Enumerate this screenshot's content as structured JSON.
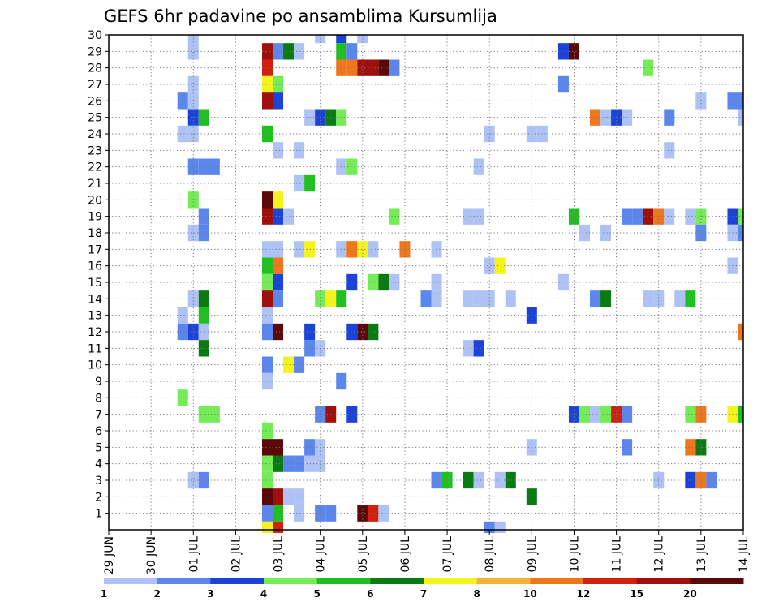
{
  "chart_data": {
    "type": "heatmap",
    "title": "GEFS 6hr padavine po ansamblima Kursumlija",
    "xlabel": "",
    "ylabel": "",
    "x_tick_labels": [
      "29 JUN",
      "30 JUN",
      "01 JUL",
      "02 JUL",
      "03 JUL",
      "04 JUL",
      "05 JUL",
      "06 JUL",
      "07 JUL",
      "08 JUL",
      "09 JUL",
      "10 JUL",
      "11 JUL",
      "12 JUL",
      "13 JUL",
      "14 JUL"
    ],
    "x_range_steps": [
      0,
      60
    ],
    "steps_per_day": 4,
    "y_range_members": [
      0,
      30
    ],
    "y_tick_labels": [
      "1",
      "2",
      "3",
      "4",
      "5",
      "6",
      "7",
      "8",
      "9",
      "10",
      "11",
      "12",
      "13",
      "14",
      "15",
      "16",
      "17",
      "18",
      "19",
      "20",
      "21",
      "22",
      "23",
      "24",
      "25",
      "26",
      "27",
      "28",
      "29",
      "30"
    ],
    "grid": true,
    "colorbar": {
      "labels": [
        "1",
        "2",
        "3",
        "4",
        "5",
        "6",
        "7",
        "8",
        "10",
        "12",
        "15",
        "20"
      ],
      "colors": [
        "#aec2f5",
        "#5b87ec",
        "#1c43d8",
        "#73ec58",
        "#20c020",
        "#0c7a12",
        "#f4f41c",
        "#f6b13b",
        "#f0761c",
        "#d0200e",
        "#a0100a",
        "#5c0808"
      ]
    },
    "cells": [
      [
        8,
        30,
        1
      ],
      [
        20,
        30,
        1
      ],
      [
        22,
        30,
        3
      ],
      [
        24,
        30,
        1
      ],
      [
        8,
        29,
        1
      ],
      [
        15,
        29,
        11
      ],
      [
        16,
        29,
        2
      ],
      [
        17,
        29,
        6
      ],
      [
        18,
        29,
        1
      ],
      [
        22,
        29,
        5
      ],
      [
        23,
        29,
        2
      ],
      [
        43,
        29,
        3
      ],
      [
        44,
        29,
        12
      ],
      [
        15,
        28,
        10
      ],
      [
        22,
        28,
        9
      ],
      [
        23,
        28,
        9
      ],
      [
        24,
        28,
        11
      ],
      [
        25,
        28,
        11
      ],
      [
        26,
        28,
        12
      ],
      [
        27,
        28,
        2
      ],
      [
        51,
        28,
        4
      ],
      [
        8,
        27,
        1
      ],
      [
        15,
        27,
        7
      ],
      [
        16,
        27,
        4
      ],
      [
        43,
        27,
        2
      ],
      [
        7,
        26,
        2
      ],
      [
        8,
        26,
        1
      ],
      [
        15,
        26,
        11
      ],
      [
        16,
        26,
        3
      ],
      [
        56,
        26,
        1
      ],
      [
        59,
        26,
        2
      ],
      [
        60,
        26,
        2
      ],
      [
        8,
        25,
        3
      ],
      [
        9,
        25,
        5
      ],
      [
        19,
        25,
        1
      ],
      [
        20,
        25,
        3
      ],
      [
        21,
        25,
        6
      ],
      [
        22,
        25,
        4
      ],
      [
        46,
        25,
        9
      ],
      [
        47,
        25,
        1
      ],
      [
        48,
        25,
        3
      ],
      [
        49,
        25,
        1
      ],
      [
        53,
        25,
        2
      ],
      [
        60,
        25,
        1
      ],
      [
        7,
        24,
        1
      ],
      [
        8,
        24,
        1
      ],
      [
        15,
        24,
        5
      ],
      [
        36,
        24,
        1
      ],
      [
        40,
        24,
        1
      ],
      [
        41,
        24,
        1
      ],
      [
        16,
        23,
        1
      ],
      [
        18,
        23,
        1
      ],
      [
        53,
        23,
        1
      ],
      [
        8,
        22,
        2
      ],
      [
        9,
        22,
        2
      ],
      [
        10,
        22,
        2
      ],
      [
        22,
        22,
        1
      ],
      [
        23,
        22,
        4
      ],
      [
        35,
        22,
        1
      ],
      [
        18,
        21,
        1
      ],
      [
        19,
        21,
        5
      ],
      [
        8,
        20,
        4
      ],
      [
        15,
        20,
        12
      ],
      [
        16,
        20,
        7
      ],
      [
        9,
        19,
        2
      ],
      [
        15,
        19,
        11
      ],
      [
        16,
        19,
        3
      ],
      [
        17,
        19,
        1
      ],
      [
        27,
        19,
        4
      ],
      [
        34,
        19,
        1
      ],
      [
        35,
        19,
        1
      ],
      [
        44,
        19,
        5
      ],
      [
        49,
        19,
        2
      ],
      [
        50,
        19,
        2
      ],
      [
        51,
        19,
        11
      ],
      [
        52,
        19,
        9
      ],
      [
        53,
        19,
        1
      ],
      [
        55,
        19,
        1
      ],
      [
        56,
        19,
        4
      ],
      [
        59,
        19,
        3
      ],
      [
        60,
        19,
        4
      ],
      [
        8,
        18,
        1
      ],
      [
        9,
        18,
        2
      ],
      [
        45,
        18,
        1
      ],
      [
        47,
        18,
        1
      ],
      [
        56,
        18,
        2
      ],
      [
        59,
        18,
        1
      ],
      [
        60,
        18,
        2
      ],
      [
        15,
        17,
        1
      ],
      [
        16,
        17,
        1
      ],
      [
        18,
        17,
        1
      ],
      [
        19,
        17,
        7
      ],
      [
        22,
        17,
        1
      ],
      [
        23,
        17,
        9
      ],
      [
        24,
        17,
        7
      ],
      [
        25,
        17,
        1
      ],
      [
        28,
        17,
        9
      ],
      [
        31,
        17,
        1
      ],
      [
        15,
        16,
        5
      ],
      [
        16,
        16,
        9
      ],
      [
        36,
        16,
        1
      ],
      [
        37,
        16,
        7
      ],
      [
        59,
        16,
        1
      ],
      [
        15,
        15,
        4
      ],
      [
        16,
        15,
        3
      ],
      [
        23,
        15,
        3
      ],
      [
        25,
        15,
        4
      ],
      [
        26,
        15,
        6
      ],
      [
        27,
        15,
        1
      ],
      [
        31,
        15,
        1
      ],
      [
        43,
        15,
        1
      ],
      [
        8,
        14,
        1
      ],
      [
        9,
        14,
        6
      ],
      [
        15,
        14,
        11
      ],
      [
        16,
        14,
        2
      ],
      [
        20,
        14,
        4
      ],
      [
        21,
        14,
        7
      ],
      [
        22,
        14,
        5
      ],
      [
        30,
        14,
        2
      ],
      [
        31,
        14,
        1
      ],
      [
        34,
        14,
        1
      ],
      [
        35,
        14,
        1
      ],
      [
        36,
        14,
        1
      ],
      [
        38,
        14,
        1
      ],
      [
        46,
        14,
        2
      ],
      [
        47,
        14,
        6
      ],
      [
        51,
        14,
        1
      ],
      [
        52,
        14,
        1
      ],
      [
        54,
        14,
        1
      ],
      [
        55,
        14,
        5
      ],
      [
        7,
        13,
        1
      ],
      [
        9,
        13,
        5
      ],
      [
        15,
        13,
        1
      ],
      [
        40,
        13,
        3
      ],
      [
        7,
        12,
        2
      ],
      [
        8,
        12,
        3
      ],
      [
        9,
        12,
        1
      ],
      [
        15,
        12,
        2
      ],
      [
        16,
        12,
        12
      ],
      [
        19,
        12,
        3
      ],
      [
        23,
        12,
        3
      ],
      [
        24,
        12,
        12
      ],
      [
        25,
        12,
        6
      ],
      [
        60,
        12,
        9
      ],
      [
        9,
        11,
        6
      ],
      [
        19,
        11,
        2
      ],
      [
        20,
        11,
        1
      ],
      [
        34,
        11,
        1
      ],
      [
        35,
        11,
        3
      ],
      [
        15,
        10,
        2
      ],
      [
        17,
        10,
        7
      ],
      [
        18,
        10,
        2
      ],
      [
        15,
        9,
        1
      ],
      [
        22,
        9,
        2
      ],
      [
        7,
        8,
        4
      ],
      [
        9,
        7,
        4
      ],
      [
        10,
        7,
        4
      ],
      [
        20,
        7,
        2
      ],
      [
        21,
        7,
        11
      ],
      [
        23,
        7,
        3
      ],
      [
        44,
        7,
        3
      ],
      [
        45,
        7,
        4
      ],
      [
        46,
        7,
        1
      ],
      [
        47,
        7,
        4
      ],
      [
        48,
        7,
        10
      ],
      [
        49,
        7,
        2
      ],
      [
        55,
        7,
        4
      ],
      [
        56,
        7,
        9
      ],
      [
        59,
        7,
        7
      ],
      [
        60,
        7,
        5
      ],
      [
        15,
        6,
        4
      ],
      [
        15,
        5,
        12
      ],
      [
        16,
        5,
        12
      ],
      [
        19,
        5,
        2
      ],
      [
        20,
        5,
        1
      ],
      [
        40,
        5,
        1
      ],
      [
        49,
        5,
        2
      ],
      [
        55,
        5,
        9
      ],
      [
        56,
        5,
        6
      ],
      [
        15,
        4,
        4
      ],
      [
        16,
        4,
        6
      ],
      [
        17,
        4,
        2
      ],
      [
        18,
        4,
        2
      ],
      [
        19,
        4,
        1
      ],
      [
        20,
        4,
        1
      ],
      [
        8,
        3,
        1
      ],
      [
        9,
        3,
        2
      ],
      [
        15,
        3,
        4
      ],
      [
        31,
        3,
        2
      ],
      [
        32,
        3,
        5
      ],
      [
        34,
        3,
        6
      ],
      [
        35,
        3,
        1
      ],
      [
        37,
        3,
        1
      ],
      [
        38,
        3,
        6
      ],
      [
        52,
        3,
        1
      ],
      [
        55,
        3,
        3
      ],
      [
        56,
        3,
        9
      ],
      [
        57,
        3,
        2
      ],
      [
        15,
        2,
        12
      ],
      [
        16,
        2,
        11
      ],
      [
        17,
        2,
        1
      ],
      [
        18,
        2,
        1
      ],
      [
        40,
        2,
        6
      ],
      [
        15,
        1,
        2
      ],
      [
        16,
        1,
        5
      ],
      [
        18,
        1,
        1
      ],
      [
        20,
        1,
        2
      ],
      [
        21,
        1,
        2
      ],
      [
        24,
        1,
        12
      ],
      [
        25,
        1,
        10
      ],
      [
        26,
        1,
        1
      ],
      [
        15,
        0,
        7
      ],
      [
        16,
        0,
        10
      ],
      [
        36,
        0,
        2
      ],
      [
        37,
        0,
        1
      ]
    ]
  }
}
